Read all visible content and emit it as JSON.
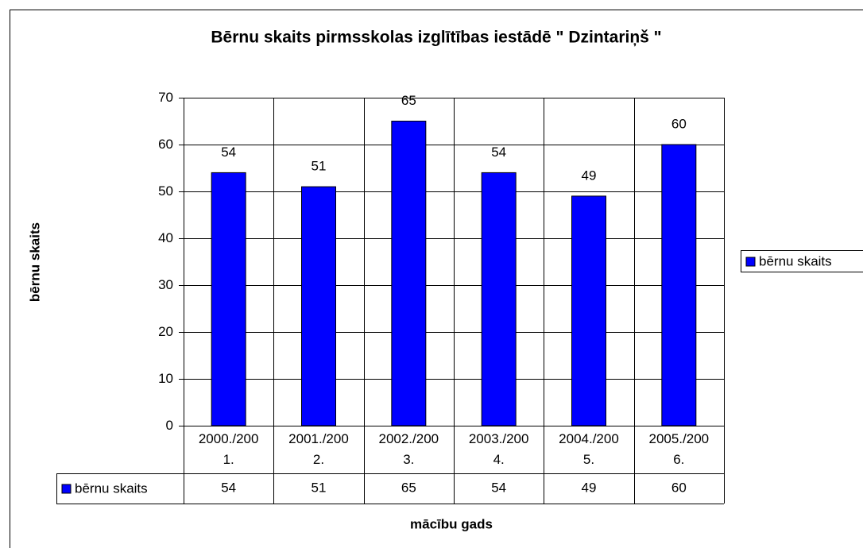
{
  "chart_data": {
    "type": "bar",
    "title": "Bērnu skaits pirmsskolas izglītības iestādē \" Dzintariņš \"",
    "x_label": "mācību gads",
    "y_label": "bērnu skaits",
    "categories": [
      "2000./2001.",
      "2001./2002.",
      "2002./2003.",
      "2003./2004.",
      "2004./2005.",
      "2005./2006."
    ],
    "series": [
      {
        "name": "bērnu skaits",
        "color": "#0000ff",
        "values": [
          54,
          51,
          65,
          54,
          49,
          60
        ]
      }
    ],
    "ylim": [
      0,
      70
    ],
    "yticks": [
      0,
      10,
      20,
      30,
      40,
      50,
      60,
      70
    ],
    "grid": true,
    "legend": "right",
    "data_table": true
  }
}
